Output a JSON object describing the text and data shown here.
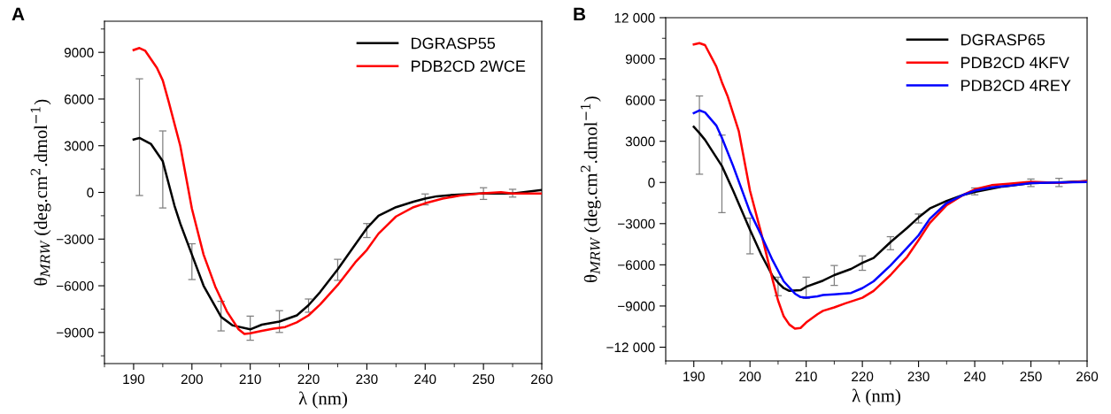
{
  "chart_data": [
    {
      "type": "line",
      "annotations": [
        "A"
      ],
      "xlabel": "λ (nm)",
      "ylabel": "θ$_{MRW}$ (deg.cm$^{2}$.dmol$^{−1}$)",
      "xlim": [
        185,
        260
      ],
      "ylim": [
        -11000,
        11000
      ],
      "xticks": [
        190,
        200,
        210,
        220,
        230,
        240,
        250,
        260
      ],
      "yticks": [
        {
          "value": -9000,
          "label": "−9000"
        },
        {
          "value": -6000,
          "label": "−6000"
        },
        {
          "value": -3000,
          "label": "−3000"
        },
        0,
        3000,
        6000,
        9000
      ],
      "legend": "top right",
      "grid": false,
      "series": [
        {
          "name": "DGRASP55",
          "color": "#000000",
          "x": [
            190,
            191,
            193,
            195,
            197,
            198,
            200,
            202,
            205,
            207,
            210,
            212,
            215,
            218,
            220,
            222,
            225,
            228,
            230,
            232,
            235,
            238,
            240,
            242,
            245,
            250,
            255,
            260
          ],
          "values": [
            3400,
            3500,
            3100,
            2000,
            -840,
            -2000,
            -4000,
            -6000,
            -8000,
            -8550,
            -8800,
            -8500,
            -8300,
            -7900,
            -7250,
            -6400,
            -4950,
            -3350,
            -2300,
            -1500,
            -950,
            -600,
            -400,
            -250,
            -150,
            -50,
            -70,
            150
          ],
          "errors": [
            null,
            [
              -200,
              7300
            ],
            null,
            [
              -1000,
              3950
            ],
            null,
            null,
            [
              -5600,
              -3300
            ],
            null,
            [
              -8900,
              -7000
            ],
            null,
            [
              -9500,
              -7950
            ],
            null,
            [
              -9000,
              -7600
            ],
            null,
            [
              -7700,
              -6850
            ],
            null,
            [
              -5650,
              -4300
            ],
            null,
            [
              -2900,
              -2000
            ],
            null,
            null,
            null,
            [
              -800,
              -100
            ],
            null,
            null,
            [
              -450,
              300
            ],
            [
              -300,
              200
            ],
            null
          ]
        },
        {
          "name": "PDB2CD 2WCE",
          "color": "#ff0000",
          "x": [
            190,
            191,
            192,
            194,
            195,
            196,
            198,
            200,
            202,
            204,
            206,
            208,
            209,
            210,
            212,
            214,
            216,
            218,
            220,
            222,
            225,
            228,
            230,
            232,
            235,
            238,
            240,
            243,
            246,
            250,
            253,
            255,
            260
          ],
          "values": [
            9150,
            9280,
            9100,
            8000,
            7200,
            5850,
            3000,
            -1050,
            -4000,
            -6050,
            -7650,
            -8800,
            -9100,
            -9050,
            -8900,
            -8750,
            -8650,
            -8350,
            -7900,
            -7200,
            -5950,
            -4500,
            -3700,
            -2650,
            -1550,
            -950,
            -700,
            -400,
            -200,
            -50,
            20,
            -70,
            -70
          ]
        }
      ]
    },
    {
      "type": "line",
      "annotations": [
        "B"
      ],
      "xlabel": "λ (nm)",
      "ylabel": "θ$_{MRW}$ (deg.cm$^{2}$.dmol$^{−1}$)",
      "xlim": [
        185,
        260
      ],
      "ylim": [
        -13000,
        12000
      ],
      "xticks": [
        190,
        200,
        210,
        220,
        230,
        240,
        250,
        260
      ],
      "yticks": [
        {
          "value": -12000,
          "label": "−12 000"
        },
        {
          "value": -9000,
          "label": "−9000"
        },
        {
          "value": -6000,
          "label": "−6000"
        },
        {
          "value": -3000,
          "label": "−3000"
        },
        0,
        3000,
        6000,
        9000,
        {
          "value": 12000,
          "label": "12 000"
        }
      ],
      "legend": "top right",
      "grid": false,
      "series": [
        {
          "name": "DGRASP65",
          "color": "#000000",
          "x": [
            190,
            191,
            192,
            195,
            197,
            200,
            202,
            204,
            205,
            206,
            207,
            209,
            210,
            213,
            215,
            218,
            220,
            222,
            225,
            228,
            230,
            232,
            235,
            238,
            240,
            245,
            250,
            255,
            260
          ],
          "values": [
            4050,
            3600,
            3100,
            1200,
            -600,
            -3450,
            -5250,
            -6800,
            -7300,
            -7700,
            -7900,
            -7850,
            -7600,
            -7150,
            -6750,
            -6300,
            -5850,
            -5500,
            -4350,
            -3300,
            -2550,
            -1900,
            -1350,
            -900,
            -700,
            -300,
            -50,
            0,
            100
          ],
          "errors": [
            null,
            [
              600,
              6300
            ],
            null,
            [
              -2200,
              3450
            ],
            null,
            [
              -5200,
              -2600
            ],
            null,
            null,
            [
              -8250,
              -6900
            ],
            null,
            null,
            null,
            [
              -8450,
              -6900
            ],
            null,
            [
              -7500,
              -6050
            ],
            null,
            [
              -6400,
              -5350
            ],
            null,
            [
              -4900,
              -3950
            ],
            null,
            [
              -2950,
              -2300
            ],
            null,
            null,
            null,
            [
              -900,
              -400
            ],
            null,
            [
              -300,
              250
            ],
            [
              -300,
              300
            ],
            null
          ]
        },
        {
          "name": "PDB2CD 4KFV",
          "color": "#ff0000",
          "x": [
            190,
            191,
            192,
            194,
            195,
            196,
            198,
            200,
            202,
            204,
            205,
            206,
            207,
            208,
            209,
            210,
            212,
            213,
            215,
            217,
            220,
            222,
            225,
            228,
            230,
            232,
            235,
            238,
            240,
            243,
            246,
            250,
            255,
            260
          ],
          "values": [
            10050,
            10150,
            10000,
            8450,
            7300,
            6300,
            3750,
            -600,
            -3700,
            -7050,
            -8600,
            -9750,
            -10350,
            -10650,
            -10600,
            -10200,
            -9600,
            -9350,
            -9100,
            -8800,
            -8400,
            -7900,
            -6750,
            -5400,
            -4200,
            -2950,
            -1650,
            -900,
            -500,
            -200,
            -100,
            50,
            -30,
            100
          ]
        },
        {
          "name": "PDB2CD 4REY",
          "color": "#0000ff",
          "x": [
            190,
            191,
            192,
            194,
            195,
            197,
            200,
            202,
            204,
            206,
            208,
            209,
            210,
            212,
            213,
            215,
            218,
            220,
            222,
            225,
            228,
            230,
            232,
            235,
            238,
            240,
            243,
            246,
            250,
            255,
            260
          ],
          "values": [
            5050,
            5250,
            5100,
            4150,
            3250,
            1200,
            -2150,
            -3850,
            -5650,
            -7200,
            -8100,
            -8350,
            -8400,
            -8300,
            -8200,
            -8150,
            -8050,
            -7700,
            -7200,
            -6050,
            -4750,
            -3850,
            -2650,
            -1500,
            -900,
            -600,
            -350,
            -250,
            -50,
            0,
            30
          ]
        }
      ]
    }
  ]
}
